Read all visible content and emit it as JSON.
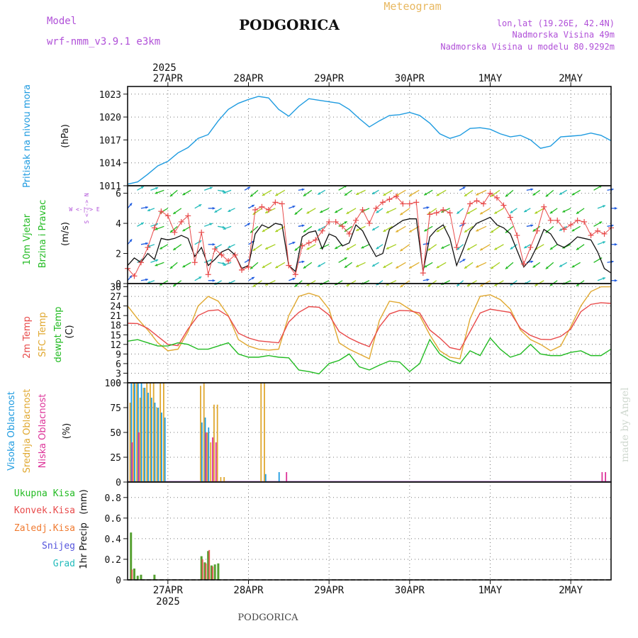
{
  "header": {
    "title": "PODGORICA",
    "meteogram_label": "Meteogram",
    "model_label": "Model",
    "model_name": "wrf-nmm_v3.9.1  e3km",
    "lonlat": "lon,lat (19.26E, 42.4N)",
    "elevation": "Nadmorska Visina 49m",
    "model_elevation": "Nadmorska Visina u modelu 80.9292m",
    "footer_title": "PODGORICA",
    "watermark": "made by Angel"
  },
  "colors": {
    "pressure": "#1e9be0",
    "wind_label": "#22bb22",
    "temp2m": "#e84a4a",
    "sfc_temp": "#e0a830",
    "dewpt": "#22bb22",
    "cloud_high": "#1e9be0",
    "cloud_mid": "#e0a830",
    "cloud_low": "#dd3399",
    "precip_total": "#55a030",
    "precip_conv": "#e84a4a",
    "precip_strat": "#f07a30",
    "snow": "#5555dd",
    "hail": "#22bbbb",
    "meta_purple": "#b050d8",
    "meteogram_gold": "#e8b860"
  },
  "chart_data": {
    "type": "line",
    "x_unit": "hours since 2025-04-26 12:00 UTC",
    "x_range": [
      0,
      144
    ],
    "year_label": "2025",
    "date_labels": [
      {
        "label": "27APR",
        "hour": 12
      },
      {
        "label": "28APR",
        "hour": 36
      },
      {
        "label": "29APR",
        "hour": 60
      },
      {
        "label": "30APR",
        "hour": 84
      },
      {
        "label": "1MAY",
        "hour": 108
      },
      {
        "label": "2MAY",
        "hour": 132
      }
    ],
    "panels": {
      "pressure": {
        "ylabel": "Pritisak na nivou mora",
        "unit": "(hPa)",
        "ylim": [
          1011,
          1024
        ],
        "ticks": [
          1011,
          1014,
          1017,
          1020,
          1023
        ],
        "x": [
          0,
          3,
          6,
          9,
          12,
          15,
          18,
          21,
          24,
          27,
          30,
          33,
          36,
          39,
          42,
          45,
          48,
          51,
          54,
          57,
          60,
          63,
          66,
          69,
          72,
          75,
          78,
          81,
          84,
          87,
          90,
          93,
          96,
          99,
          102,
          105,
          108,
          111,
          114,
          117,
          120,
          123,
          126,
          129,
          132,
          135,
          138,
          141,
          144
        ],
        "values": [
          1011.2,
          1011.5,
          1012.5,
          1013.6,
          1014.2,
          1015.3,
          1016.0,
          1017.2,
          1017.7,
          1019.5,
          1021.0,
          1021.8,
          1022.3,
          1022.7,
          1022.5,
          1021.0,
          1020.1,
          1021.4,
          1022.4,
          1022.2,
          1022.0,
          1021.8,
          1021.0,
          1019.8,
          1018.7,
          1019.5,
          1020.2,
          1020.3,
          1020.6,
          1020.2,
          1019.2,
          1017.8,
          1017.2,
          1017.6,
          1018.5,
          1018.6,
          1018.4,
          1017.8,
          1017.4,
          1017.6,
          1017.0,
          1015.9,
          1016.2,
          1017.4,
          1017.5,
          1017.6,
          1017.9,
          1017.6,
          1016.9
        ]
      },
      "wind": {
        "ylabel_1": "10m Vjetar",
        "ylabel_2": "Brzina i Pravac",
        "unit": "(m/s)",
        "compass": "W <-|-> E",
        "compass_v": "S <-|-> N",
        "ylim": [
          0,
          6.5
        ],
        "ticks": [
          0,
          2,
          4,
          6
        ],
        "x": [
          0,
          2,
          4,
          6,
          8,
          10,
          12,
          14,
          16,
          18,
          20,
          22,
          24,
          26,
          28,
          30,
          32,
          34,
          36,
          38,
          40,
          42,
          44,
          46,
          48,
          50,
          52,
          54,
          56,
          58,
          60,
          62,
          64,
          66,
          68,
          70,
          72,
          74,
          76,
          78,
          80,
          82,
          84,
          86,
          88,
          90,
          92,
          94,
          96,
          98,
          100,
          102,
          104,
          106,
          108,
          110,
          112,
          114,
          116,
          118,
          120,
          122,
          124,
          126,
          128,
          130,
          132,
          134,
          136,
          138,
          140,
          142,
          144
        ],
        "speed": [
          1.2,
          1.7,
          1.4,
          2.0,
          1.6,
          3.0,
          2.9,
          3.0,
          3.2,
          3.0,
          1.8,
          2.4,
          1.2,
          1.6,
          2.1,
          2.3,
          1.9,
          1.0,
          1.2,
          3.3,
          3.9,
          3.7,
          4.0,
          3.9,
          1.2,
          0.8,
          3.1,
          3.4,
          3.5,
          2.3,
          3.3,
          3.1,
          2.5,
          2.7,
          3.9,
          3.5,
          2.6,
          1.8,
          2.0,
          3.6,
          3.9,
          4.2,
          4.3,
          4.3,
          0.8,
          3.1,
          3.6,
          3.9,
          3.0,
          1.2,
          2.3,
          3.5,
          4.0,
          4.2,
          4.4,
          3.9,
          3.7,
          3.3,
          2.2,
          1.1,
          1.6,
          2.5,
          3.6,
          3.3,
          2.6,
          2.4,
          2.7,
          3.1,
          3.0,
          2.9,
          2.1,
          1.0,
          0.7
        ],
        "gust": [
          1.0,
          0.5,
          1.4,
          2.4,
          3.7,
          4.8,
          4.5,
          3.4,
          4.1,
          4.5,
          1.4,
          3.4,
          0.6,
          2.3,
          1.9,
          1.5,
          1.9,
          0.9,
          1.1,
          4.9,
          5.1,
          4.9,
          5.4,
          5.3,
          1.2,
          0.6,
          2.5,
          2.7,
          2.9,
          3.5,
          4.1,
          4.1,
          3.8,
          3.3,
          4.2,
          4.9,
          4.0,
          5.0,
          5.4,
          5.6,
          5.8,
          5.3,
          5.3,
          5.4,
          0.7,
          4.6,
          4.7,
          4.9,
          4.7,
          2.4,
          4.0,
          5.3,
          5.5,
          5.3,
          6.0,
          5.7,
          5.2,
          4.4,
          3.2,
          1.3,
          2.4,
          3.5,
          5.1,
          4.2,
          4.2,
          3.6,
          3.9,
          4.2,
          4.1,
          3.2,
          3.5,
          3.3,
          3.7
        ],
        "direction_deg": [
          40,
          60,
          80,
          70,
          250,
          250,
          240,
          230,
          235,
          240,
          60,
          70,
          90,
          100,
          240,
          250,
          245,
          60,
          60,
          230,
          235,
          240,
          245,
          240,
          70,
          80,
          230,
          235,
          240,
          240,
          245,
          60,
          240,
          235,
          240,
          245,
          245,
          240,
          235,
          240,
          245,
          240,
          235,
          240,
          80,
          240,
          235,
          240,
          245,
          60,
          230,
          235,
          240,
          245,
          240,
          235,
          240,
          230,
          235,
          80,
          240,
          235,
          240,
          230,
          235,
          240,
          245,
          240,
          235,
          60,
          70,
          80,
          90
        ]
      },
      "temperature": {
        "ylabel_2m": "2m Temp",
        "ylabel_sfc": "SFC Temp",
        "ylabel_dew": "dewpt Temp",
        "unit": "(C)",
        "ylim": [
          0,
          31
        ],
        "ticks": [
          0,
          3,
          6,
          9,
          12,
          15,
          18,
          21,
          24,
          27,
          30
        ],
        "x": [
          0,
          3,
          6,
          9,
          12,
          15,
          18,
          21,
          24,
          27,
          30,
          33,
          36,
          39,
          42,
          45,
          48,
          51,
          54,
          57,
          60,
          63,
          66,
          69,
          72,
          75,
          78,
          81,
          84,
          87,
          90,
          93,
          96,
          99,
          102,
          105,
          108,
          111,
          114,
          117,
          120,
          123,
          126,
          129,
          132,
          135,
          138,
          141,
          144
        ],
        "temp2m": [
          18.6,
          18.5,
          17.0,
          14.5,
          12.0,
          11.6,
          16.8,
          21.0,
          22.5,
          22.8,
          20.8,
          15.5,
          14.0,
          13.1,
          12.8,
          12.5,
          19.0,
          22.0,
          23.8,
          23.6,
          21.2,
          16.0,
          14.0,
          12.5,
          11.3,
          17.5,
          21.5,
          22.6,
          22.5,
          21.8,
          16.5,
          14.0,
          11.0,
          10.3,
          16.0,
          21.8,
          23.0,
          22.5,
          22.0,
          17.0,
          14.8,
          13.6,
          13.5,
          14.5,
          16.8,
          22.2,
          24.5,
          25.0,
          24.8
        ],
        "sfc": [
          24.0,
          20.0,
          16.5,
          12.5,
          10.0,
          10.5,
          16.0,
          24.0,
          27.0,
          25.5,
          21.0,
          13.5,
          11.5,
          10.5,
          10.2,
          10.5,
          21.0,
          27.0,
          28.0,
          27.0,
          23.0,
          12.5,
          10.5,
          9.0,
          7.5,
          19.5,
          25.5,
          25.0,
          23.0,
          21.0,
          15.0,
          10.0,
          8.0,
          7.5,
          20.0,
          27.0,
          27.5,
          26.0,
          23.0,
          16.5,
          13.5,
          12.0,
          10.0,
          11.5,
          17.5,
          24.0,
          28.5,
          30.0,
          30.0
        ],
        "dewpt": [
          13.0,
          13.5,
          12.5,
          11.5,
          11.5,
          12.5,
          12.0,
          10.5,
          10.5,
          11.5,
          12.5,
          9.0,
          8.0,
          8.0,
          8.5,
          8.0,
          7.8,
          4.0,
          3.5,
          2.8,
          6.0,
          7.0,
          9.0,
          5.0,
          4.0,
          5.5,
          6.8,
          6.5,
          3.5,
          6.0,
          13.5,
          9.0,
          7.0,
          6.0,
          10.0,
          8.5,
          14.0,
          10.5,
          8.0,
          9.0,
          12.0,
          9.0,
          8.5,
          8.5,
          9.5,
          10.0,
          8.5,
          8.5,
          10.5
        ]
      },
      "clouds": {
        "ylabel_high": "Visoka Oblacnost",
        "ylabel_mid": "Srednja Oblacnost",
        "ylabel_low": "Niska Oblacnost",
        "unit": "(%)",
        "ylim": [
          0,
          100
        ],
        "ticks": [
          0,
          25,
          50,
          75,
          100
        ],
        "high": [
          [
            1,
            100
          ],
          [
            2,
            100
          ],
          [
            3,
            100
          ],
          [
            4,
            100
          ],
          [
            5,
            95
          ],
          [
            6,
            90
          ],
          [
            7,
            85
          ],
          [
            8,
            80
          ],
          [
            9,
            75
          ],
          [
            10,
            70
          ],
          [
            11,
            65
          ],
          [
            22,
            60
          ],
          [
            23,
            65
          ],
          [
            24,
            55
          ],
          [
            41,
            8
          ],
          [
            45,
            10
          ]
        ],
        "mid": [
          [
            1,
            80
          ],
          [
            2,
            100
          ],
          [
            3,
            100
          ],
          [
            4,
            85
          ],
          [
            5,
            95
          ],
          [
            6,
            100
          ],
          [
            7,
            100
          ],
          [
            8,
            100
          ],
          [
            9,
            75
          ],
          [
            10,
            100
          ],
          [
            11,
            100
          ],
          [
            22,
            97
          ],
          [
            23,
            100
          ],
          [
            24,
            50
          ],
          [
            25,
            40
          ],
          [
            26,
            78
          ],
          [
            27,
            78
          ],
          [
            28,
            5
          ],
          [
            29,
            5
          ],
          [
            40,
            100
          ],
          [
            41,
            100
          ]
        ],
        "low": [
          [
            1,
            40
          ],
          [
            3,
            50
          ],
          [
            23,
            50
          ],
          [
            25,
            45
          ],
          [
            26,
            40
          ],
          [
            47,
            10
          ],
          [
            141,
            10
          ],
          [
            142,
            10
          ]
        ]
      },
      "precip": {
        "ylabel": "1hr Precip",
        "unit": "(mm)",
        "labels": {
          "total": "Ukupna  Kisa",
          "conv": "Konvek.Kisa",
          "strat": "Zaledj.Kisa",
          "snow": "Snijeg",
          "hail": "Grad"
        },
        "ylim": [
          0,
          0.95
        ],
        "ticks": [
          0,
          0.2,
          0.4,
          0.6,
          0.8
        ],
        "total": [
          [
            1,
            0.46
          ],
          [
            2,
            0.11
          ],
          [
            3,
            0.04
          ],
          [
            4,
            0.05
          ],
          [
            8,
            0.05
          ],
          [
            22,
            0.23
          ],
          [
            23,
            0.17
          ],
          [
            24,
            0.28
          ],
          [
            25,
            0.14
          ],
          [
            26,
            0.15
          ],
          [
            27,
            0.16
          ]
        ],
        "conv": [
          [
            1,
            0.1
          ],
          [
            22,
            0.2
          ],
          [
            23,
            0.16
          ],
          [
            24,
            0.29
          ],
          [
            25,
            0.13
          ]
        ]
      }
    }
  }
}
